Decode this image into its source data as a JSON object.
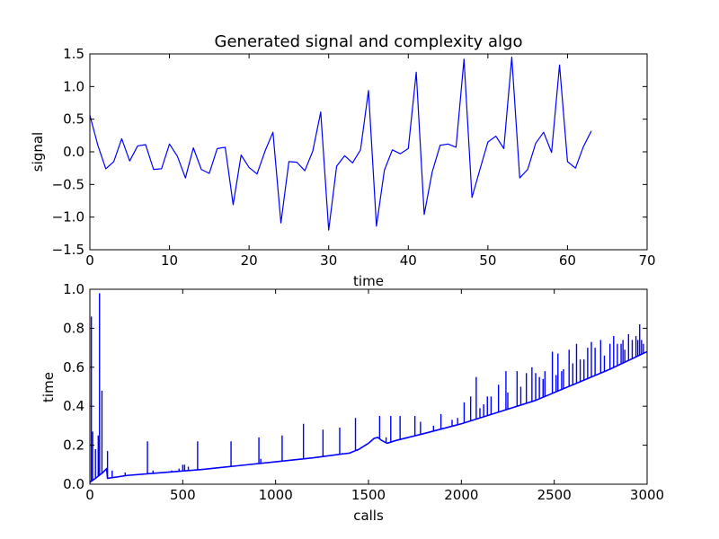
{
  "chart_data": [
    {
      "type": "line",
      "title": "Generated signal and complexity algo",
      "xlabel": "time",
      "ylabel": "signal",
      "xlim": [
        0,
        70
      ],
      "ylim": [
        -1.5,
        1.5
      ],
      "xticks": [
        0,
        10,
        20,
        30,
        40,
        50,
        60,
        70
      ],
      "yticks": [
        -1.5,
        -1.0,
        -0.5,
        0.0,
        0.5,
        1.0,
        1.5
      ],
      "xtick_labels": [
        "0",
        "10",
        "20",
        "30",
        "40",
        "50",
        "60",
        "70"
      ],
      "ytick_labels": [
        "−1.5",
        "−1.0",
        "−0.5",
        "0.0",
        "0.5",
        "1.0",
        "1.5"
      ],
      "grid": false,
      "line_color": "#0000ff",
      "series": [
        {
          "x": [
            0,
            1,
            2,
            3,
            4,
            5,
            6,
            7,
            8,
            9,
            10,
            11,
            12,
            13,
            14,
            15,
            16,
            17,
            18,
            19,
            20,
            21,
            22,
            23,
            24,
            25,
            26,
            27,
            28,
            29,
            30,
            31,
            32,
            33,
            34,
            35,
            36,
            37,
            38,
            39,
            40,
            41,
            42,
            43,
            44,
            45,
            46,
            47,
            48,
            49,
            50,
            51,
            52,
            53,
            54,
            55,
            56,
            57,
            58,
            59,
            60,
            61,
            62,
            63
          ],
          "values": [
            0.56,
            0.1,
            -0.26,
            -0.15,
            0.2,
            -0.14,
            0.09,
            0.11,
            -0.27,
            -0.26,
            0.12,
            -0.07,
            -0.4,
            0.06,
            -0.27,
            -0.33,
            0.05,
            0.07,
            -0.81,
            -0.05,
            -0.24,
            -0.34,
            0.01,
            0.3,
            -1.09,
            -0.15,
            -0.16,
            -0.29,
            0.01,
            0.61,
            -1.2,
            -0.22,
            -0.06,
            -0.17,
            0.03,
            0.94,
            -1.14,
            -0.28,
            0.03,
            -0.03,
            0.05,
            1.22,
            -0.96,
            -0.31,
            0.1,
            0.12,
            0.07,
            1.42,
            -0.7,
            -0.27,
            0.15,
            0.24,
            0.05,
            1.45,
            -0.4,
            -0.27,
            0.13,
            0.3,
            -0.01,
            1.33,
            -0.15,
            -0.25,
            0.08,
            0.32
          ]
        }
      ]
    },
    {
      "type": "line",
      "title": "",
      "xlabel": "calls",
      "ylabel": "time",
      "xlim": [
        0,
        3000
      ],
      "ylim": [
        0.0,
        1.0
      ],
      "xticks": [
        0,
        500,
        1000,
        1500,
        2000,
        2500,
        3000
      ],
      "yticks": [
        0.0,
        0.2,
        0.4,
        0.6,
        0.8,
        1.0
      ],
      "xtick_labels": [
        "0",
        "500",
        "1000",
        "1500",
        "2000",
        "2500",
        "3000"
      ],
      "ytick_labels": [
        "0.0",
        "0.2",
        "0.4",
        "0.6",
        "0.8",
        "1.0"
      ],
      "grid": false,
      "line_color": "#0000ff",
      "baseline": {
        "x": [
          0,
          15,
          30,
          50,
          70,
          90,
          95,
          200,
          400,
          600,
          800,
          1000,
          1200,
          1400,
          1450,
          1500,
          1530,
          1550,
          1570,
          1600,
          1650,
          1800,
          2000,
          2200,
          2400,
          2600,
          2800,
          3000
        ],
        "values": [
          0.01,
          0.02,
          0.03,
          0.045,
          0.06,
          0.08,
          0.03,
          0.045,
          0.06,
          0.075,
          0.095,
          0.115,
          0.135,
          0.16,
          0.18,
          0.21,
          0.235,
          0.24,
          0.225,
          0.21,
          0.225,
          0.26,
          0.31,
          0.37,
          0.43,
          0.51,
          0.59,
          0.68
        ]
      },
      "spikes": {
        "x": [
          8,
          15,
          30,
          45,
          52,
          65,
          95,
          120,
          190,
          310,
          340,
          440,
          480,
          500,
          510,
          530,
          580,
          760,
          910,
          920,
          1035,
          1150,
          1255,
          1345,
          1360,
          1430,
          1440,
          1560,
          1595,
          1620,
          1670,
          1750,
          1780,
          1850,
          1890,
          1950,
          1980,
          2015,
          2050,
          2080,
          2100,
          2120,
          2140,
          2160,
          2200,
          2240,
          2250,
          2300,
          2320,
          2350,
          2380,
          2400,
          2420,
          2440,
          2450,
          2490,
          2510,
          2520,
          2540,
          2550,
          2580,
          2600,
          2620,
          2640,
          2660,
          2680,
          2700,
          2720,
          2750,
          2770,
          2800,
          2820,
          2840,
          2860,
          2870,
          2880,
          2900,
          2920,
          2940,
          2950,
          2960,
          2970,
          2980
        ],
        "values": [
          0.86,
          0.27,
          0.18,
          0.25,
          0.98,
          0.48,
          0.17,
          0.07,
          0.06,
          0.22,
          0.07,
          0.07,
          0.08,
          0.1,
          0.1,
          0.09,
          0.22,
          0.22,
          0.24,
          0.13,
          0.25,
          0.31,
          0.28,
          0.29,
          0.16,
          0.34,
          0.17,
          0.35,
          0.24,
          0.35,
          0.35,
          0.35,
          0.32,
          0.3,
          0.36,
          0.33,
          0.34,
          0.42,
          0.45,
          0.55,
          0.39,
          0.41,
          0.45,
          0.45,
          0.51,
          0.58,
          0.47,
          0.58,
          0.5,
          0.57,
          0.6,
          0.57,
          0.55,
          0.54,
          0.58,
          0.68,
          0.56,
          0.67,
          0.58,
          0.59,
          0.69,
          0.62,
          0.72,
          0.64,
          0.64,
          0.7,
          0.73,
          0.7,
          0.74,
          0.66,
          0.72,
          0.76,
          0.72,
          0.72,
          0.74,
          0.69,
          0.77,
          0.74,
          0.76,
          0.74,
          0.82,
          0.74,
          0.72
        ]
      }
    }
  ]
}
